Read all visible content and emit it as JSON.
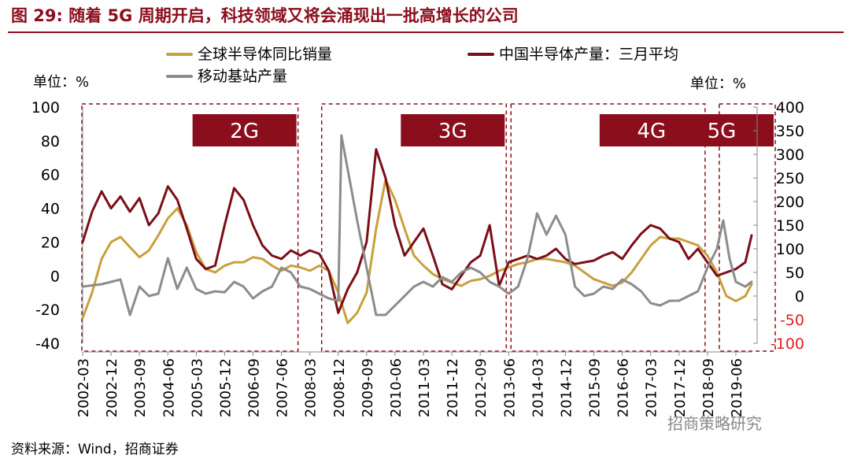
{
  "title": "图 29: 随着 5G 周期开启，科技领域又将会涌现出一批高增长的公司",
  "source": "资料来源：Wind，招商证券",
  "watermark": "招商策略研究",
  "chart_data": {
    "type": "line",
    "left_axis": {
      "unit_label": "单位：%",
      "min": -40,
      "max": 100,
      "ticks": [
        100,
        80,
        60,
        40,
        20,
        0,
        -20,
        -40
      ]
    },
    "right_axis": {
      "unit_label": "单位：%",
      "min": -100,
      "max": 400,
      "ticks": [
        400,
        350,
        300,
        250,
        200,
        150,
        100,
        50,
        0,
        -50,
        -100
      ]
    },
    "x_tick_labels": [
      "2002-03",
      "2002-12",
      "2003-09",
      "2004-06",
      "2005-03",
      "2005-12",
      "2006-09",
      "2007-06",
      "2008-03",
      "2008-12",
      "2009-09",
      "2010-06",
      "2011-03",
      "2011-12",
      "2012-09",
      "2013-06",
      "2014-03",
      "2014-12",
      "2015-09",
      "2016-06",
      "2017-03",
      "2017-12",
      "2018-09",
      "2019-06"
    ],
    "x_range": [
      "2002-03",
      "2019-11"
    ],
    "legend_placement": "top",
    "colors": {
      "semiconductor_sales": "#c8a03c",
      "china_semi_output": "#7a0f17",
      "base_station_output": "#8c8c8c",
      "accent": "#8b0e1d"
    },
    "periods": [
      {
        "label": "2G",
        "start": "2002-03",
        "end": "2007-12"
      },
      {
        "label": "3G",
        "start": "2008-06",
        "end": "2013-06"
      },
      {
        "label": "4G",
        "start": "2013-06",
        "end": "2018-09"
      },
      {
        "label": "5G",
        "start": "2018-12",
        "end": "2019-11"
      }
    ],
    "series": [
      {
        "name": "全球半导体同比销量",
        "axis": "left",
        "color_key": "semiconductor_sales",
        "points": [
          [
            "2002-03",
            -25
          ],
          [
            "2002-06",
            -10
          ],
          [
            "2002-09",
            10
          ],
          [
            "2002-12",
            20
          ],
          [
            "2003-03",
            23
          ],
          [
            "2003-06",
            17
          ],
          [
            "2003-09",
            11
          ],
          [
            "2003-12",
            15
          ],
          [
            "2004-03",
            24
          ],
          [
            "2004-06",
            34
          ],
          [
            "2004-09",
            40
          ],
          [
            "2004-12",
            30
          ],
          [
            "2005-03",
            14
          ],
          [
            "2005-06",
            4
          ],
          [
            "2005-09",
            2
          ],
          [
            "2005-12",
            6
          ],
          [
            "2006-03",
            8
          ],
          [
            "2006-06",
            8
          ],
          [
            "2006-09",
            11
          ],
          [
            "2006-12",
            10
          ],
          [
            "2007-03",
            6
          ],
          [
            "2007-06",
            3
          ],
          [
            "2007-09",
            6
          ],
          [
            "2007-12",
            5
          ],
          [
            "2008-03",
            3
          ],
          [
            "2008-06",
            6
          ],
          [
            "2008-09",
            3
          ],
          [
            "2008-12",
            -10
          ],
          [
            "2009-03",
            -28
          ],
          [
            "2009-06",
            -22
          ],
          [
            "2009-09",
            -10
          ],
          [
            "2009-12",
            28
          ],
          [
            "2010-03",
            57
          ],
          [
            "2010-06",
            45
          ],
          [
            "2010-09",
            28
          ],
          [
            "2010-12",
            12
          ],
          [
            "2011-03",
            6
          ],
          [
            "2011-06",
            1
          ],
          [
            "2011-09",
            -2
          ],
          [
            "2011-12",
            -4
          ],
          [
            "2012-03",
            -6
          ],
          [
            "2012-06",
            -3
          ],
          [
            "2012-09",
            -2
          ],
          [
            "2012-12",
            0
          ],
          [
            "2013-03",
            3
          ],
          [
            "2013-06",
            5
          ],
          [
            "2013-09",
            7
          ],
          [
            "2013-12",
            8
          ],
          [
            "2014-03",
            10
          ],
          [
            "2014-06",
            10
          ],
          [
            "2014-09",
            9
          ],
          [
            "2014-12",
            8
          ],
          [
            "2015-03",
            6
          ],
          [
            "2015-06",
            2
          ],
          [
            "2015-09",
            -2
          ],
          [
            "2015-12",
            -4
          ],
          [
            "2016-03",
            -6
          ],
          [
            "2016-06",
            -4
          ],
          [
            "2016-09",
            2
          ],
          [
            "2016-12",
            10
          ],
          [
            "2017-03",
            18
          ],
          [
            "2017-06",
            23
          ],
          [
            "2017-09",
            22
          ],
          [
            "2017-12",
            22
          ],
          [
            "2018-03",
            20
          ],
          [
            "2018-06",
            18
          ],
          [
            "2018-09",
            12
          ],
          [
            "2018-12",
            2
          ],
          [
            "2019-03",
            -12
          ],
          [
            "2019-06",
            -15
          ],
          [
            "2019-09",
            -12
          ],
          [
            "2019-11",
            -5
          ]
        ]
      },
      {
        "name": "中国半导体产量：三月平均",
        "axis": "left",
        "color_key": "china_semi_output",
        "points": [
          [
            "2002-03",
            20
          ],
          [
            "2002-06",
            38
          ],
          [
            "2002-09",
            50
          ],
          [
            "2002-12",
            40
          ],
          [
            "2003-03",
            47
          ],
          [
            "2003-06",
            38
          ],
          [
            "2003-09",
            46
          ],
          [
            "2003-12",
            30
          ],
          [
            "2004-03",
            37
          ],
          [
            "2004-06",
            53
          ],
          [
            "2004-09",
            45
          ],
          [
            "2004-12",
            28
          ],
          [
            "2005-03",
            10
          ],
          [
            "2005-06",
            4
          ],
          [
            "2005-09",
            6
          ],
          [
            "2005-12",
            30
          ],
          [
            "2006-03",
            52
          ],
          [
            "2006-06",
            45
          ],
          [
            "2006-09",
            30
          ],
          [
            "2006-12",
            18
          ],
          [
            "2007-03",
            12
          ],
          [
            "2007-06",
            10
          ],
          [
            "2007-09",
            15
          ],
          [
            "2007-12",
            12
          ],
          [
            "2008-03",
            15
          ],
          [
            "2008-06",
            13
          ],
          [
            "2008-09",
            3
          ],
          [
            "2008-12",
            -22
          ],
          [
            "2009-03",
            -8
          ],
          [
            "2009-06",
            2
          ],
          [
            "2009-09",
            20
          ],
          [
            "2009-12",
            75
          ],
          [
            "2010-03",
            58
          ],
          [
            "2010-06",
            30
          ],
          [
            "2010-09",
            12
          ],
          [
            "2010-12",
            20
          ],
          [
            "2011-03",
            28
          ],
          [
            "2011-06",
            12
          ],
          [
            "2011-09",
            -5
          ],
          [
            "2011-12",
            -8
          ],
          [
            "2012-03",
            0
          ],
          [
            "2012-06",
            8
          ],
          [
            "2012-09",
            12
          ],
          [
            "2012-12",
            30
          ],
          [
            "2013-03",
            -6
          ],
          [
            "2013-06",
            8
          ],
          [
            "2013-09",
            10
          ],
          [
            "2013-12",
            12
          ],
          [
            "2014-03",
            10
          ],
          [
            "2014-06",
            12
          ],
          [
            "2014-09",
            16
          ],
          [
            "2014-12",
            10
          ],
          [
            "2015-03",
            7
          ],
          [
            "2015-06",
            8
          ],
          [
            "2015-09",
            9
          ],
          [
            "2015-12",
            12
          ],
          [
            "2016-03",
            14
          ],
          [
            "2016-06",
            10
          ],
          [
            "2016-09",
            18
          ],
          [
            "2016-12",
            25
          ],
          [
            "2017-03",
            30
          ],
          [
            "2017-06",
            28
          ],
          [
            "2017-09",
            22
          ],
          [
            "2017-12",
            20
          ],
          [
            "2018-03",
            10
          ],
          [
            "2018-06",
            16
          ],
          [
            "2018-09",
            8
          ],
          [
            "2018-12",
            0
          ],
          [
            "2019-03",
            2
          ],
          [
            "2019-06",
            4
          ],
          [
            "2019-09",
            8
          ],
          [
            "2019-11",
            24
          ]
        ]
      },
      {
        "name": "移动基站产量",
        "axis": "right",
        "color_key": "base_station_output",
        "points": [
          [
            "2002-03",
            20
          ],
          [
            "2002-09",
            25
          ],
          [
            "2003-03",
            35
          ],
          [
            "2003-06",
            -40
          ],
          [
            "2003-09",
            20
          ],
          [
            "2003-12",
            0
          ],
          [
            "2004-03",
            5
          ],
          [
            "2004-06",
            80
          ],
          [
            "2004-09",
            15
          ],
          [
            "2004-12",
            60
          ],
          [
            "2005-03",
            15
          ],
          [
            "2005-06",
            5
          ],
          [
            "2005-09",
            10
          ],
          [
            "2005-12",
            8
          ],
          [
            "2006-03",
            30
          ],
          [
            "2006-06",
            20
          ],
          [
            "2006-09",
            -5
          ],
          [
            "2006-12",
            10
          ],
          [
            "2007-03",
            20
          ],
          [
            "2007-06",
            60
          ],
          [
            "2007-09",
            50
          ],
          [
            "2007-12",
            20
          ],
          [
            "2008-03",
            15
          ],
          [
            "2008-06",
            5
          ],
          [
            "2008-09",
            -5
          ],
          [
            "2008-12",
            -10
          ],
          [
            "2009-01",
            340
          ],
          [
            "2009-06",
            160
          ],
          [
            "2009-09",
            60
          ],
          [
            "2009-12",
            -40
          ],
          [
            "2010-03",
            -40
          ],
          [
            "2010-06",
            -20
          ],
          [
            "2010-09",
            0
          ],
          [
            "2010-12",
            20
          ],
          [
            "2011-03",
            30
          ],
          [
            "2011-06",
            20
          ],
          [
            "2011-09",
            40
          ],
          [
            "2011-12",
            30
          ],
          [
            "2012-03",
            50
          ],
          [
            "2012-06",
            60
          ],
          [
            "2012-09",
            50
          ],
          [
            "2012-12",
            30
          ],
          [
            "2013-03",
            20
          ],
          [
            "2013-06",
            5
          ],
          [
            "2013-09",
            20
          ],
          [
            "2013-12",
            80
          ],
          [
            "2014-03",
            175
          ],
          [
            "2014-06",
            130
          ],
          [
            "2014-09",
            170
          ],
          [
            "2014-12",
            130
          ],
          [
            "2015-03",
            20
          ],
          [
            "2015-06",
            0
          ],
          [
            "2015-09",
            5
          ],
          [
            "2015-12",
            20
          ],
          [
            "2016-03",
            15
          ],
          [
            "2016-06",
            35
          ],
          [
            "2016-09",
            25
          ],
          [
            "2016-12",
            10
          ],
          [
            "2017-03",
            -15
          ],
          [
            "2017-06",
            -20
          ],
          [
            "2017-09",
            -10
          ],
          [
            "2017-12",
            -10
          ],
          [
            "2018-03",
            0
          ],
          [
            "2018-06",
            10
          ],
          [
            "2018-09",
            60
          ],
          [
            "2018-12",
            100
          ],
          [
            "2019-02",
            160
          ],
          [
            "2019-04",
            80
          ],
          [
            "2019-06",
            30
          ],
          [
            "2019-09",
            20
          ],
          [
            "2019-11",
            30
          ]
        ]
      }
    ]
  }
}
